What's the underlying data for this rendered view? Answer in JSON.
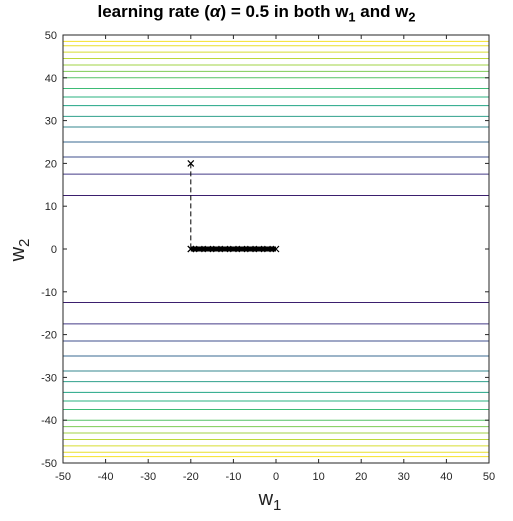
{
  "chart_data": {
    "type": "contour",
    "title": {
      "prefix": "learning rate (",
      "symbol": "α",
      "middle": ") = 0.5 in both w",
      "sub1": "1",
      "and": " and w",
      "sub2": "2"
    },
    "xlabel": {
      "base": "w",
      "sub": "1"
    },
    "ylabel": {
      "base": "w",
      "sub": "2"
    },
    "xlim": [
      -50,
      50
    ],
    "ylim": [
      -50,
      50
    ],
    "xticks": [
      -50,
      -40,
      -30,
      -20,
      -10,
      0,
      10,
      20,
      30,
      40,
      50
    ],
    "yticks": [
      -50,
      -40,
      -30,
      -20,
      -10,
      0,
      10,
      20,
      30,
      40,
      50
    ],
    "grid": false,
    "contour_levels_w2": [
      12.5,
      17.5,
      21.5,
      25,
      28.5,
      31,
      33.5,
      35.5,
      37.5,
      40,
      41.5,
      43,
      44.5,
      46,
      47.5,
      48.5
    ],
    "contour_colors": [
      "#3b1f6e",
      "#453a86",
      "#3f4f8c",
      "#3a6a90",
      "#35878f",
      "#2fa08b",
      "#21a585",
      "#2ab07f",
      "#3dbb75",
      "#55c267",
      "#7dcc55",
      "#a0d345",
      "#bcd83a",
      "#d6dd31",
      "#e8df2a",
      "#f5e12a"
    ],
    "trajectory": {
      "start": {
        "w1": -20,
        "w2": 20
      },
      "points": [
        {
          "w1": -20,
          "w2": 20
        },
        {
          "w1": -20,
          "w2": 0
        },
        {
          "w1": -20,
          "w2": 0
        },
        {
          "w1": -18,
          "w2": 0
        },
        {
          "w1": -16,
          "w2": 0
        },
        {
          "w1": -14,
          "w2": 0
        },
        {
          "w1": -12,
          "w2": 0
        },
        {
          "w1": -10,
          "w2": 0
        },
        {
          "w1": -8,
          "w2": 0
        },
        {
          "w1": -6,
          "w2": 0
        },
        {
          "w1": -4,
          "w2": 0
        },
        {
          "w1": -2,
          "w2": 0
        },
        {
          "w1": 0,
          "w2": 0
        }
      ]
    }
  }
}
